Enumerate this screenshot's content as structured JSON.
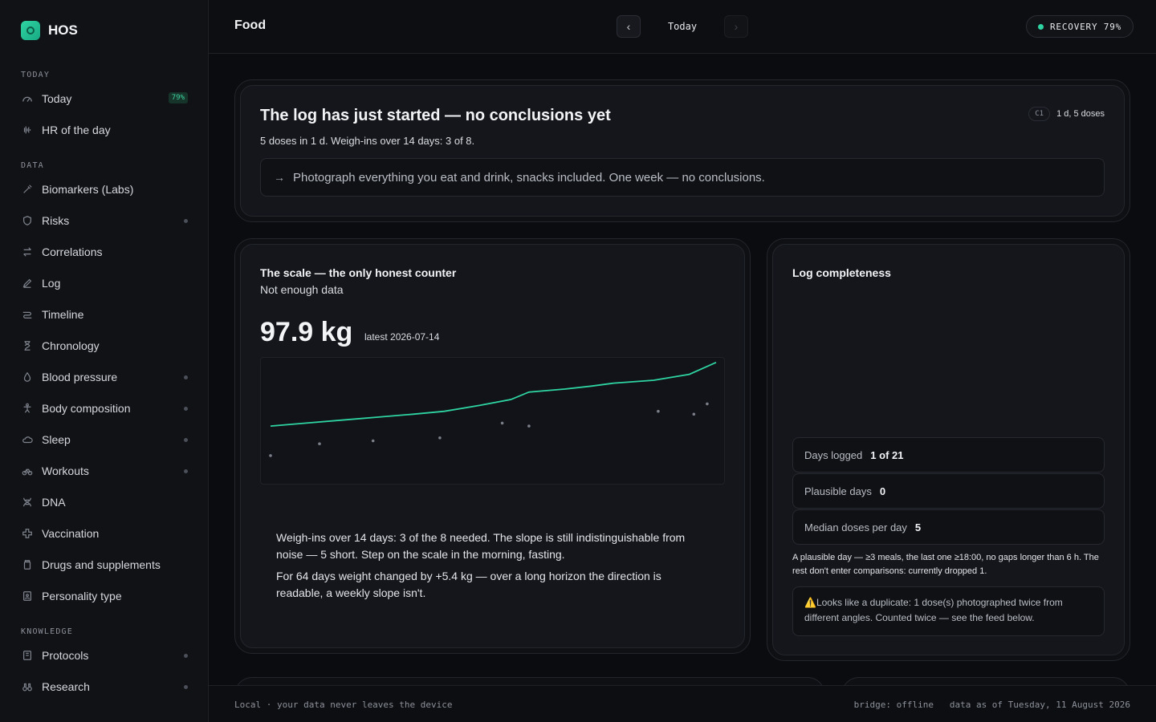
{
  "app": {
    "name": "HOS"
  },
  "sidebar": {
    "sections": {
      "today": "TODAY",
      "data": "DATA",
      "knowledge": "KNOWLEDGE"
    },
    "items": [
      {
        "label": "Today",
        "badge": "79%"
      },
      {
        "label": "HR of the day"
      },
      {
        "label": "Biomarkers (Labs)"
      },
      {
        "label": "Risks"
      },
      {
        "label": "Correlations"
      },
      {
        "label": "Log"
      },
      {
        "label": "Timeline"
      },
      {
        "label": "Chronology"
      },
      {
        "label": "Blood pressure"
      },
      {
        "label": "Body composition"
      },
      {
        "label": "Sleep"
      },
      {
        "label": "Workouts"
      },
      {
        "label": "DNA"
      },
      {
        "label": "Vaccination"
      },
      {
        "label": "Drugs and supplements"
      },
      {
        "label": "Personality type"
      },
      {
        "label": "Protocols"
      },
      {
        "label": "Research"
      }
    ]
  },
  "header": {
    "title": "Food",
    "date_label": "Today",
    "recovery": "RECOVERY 79%"
  },
  "hero": {
    "title": "The log has just started — no conclusions yet",
    "subtitle": "5 doses in 1 d. Weigh-ins over 14 days: 3 of 8.",
    "tag": "C1",
    "meta": "1 d, 5 doses",
    "hint": "Photograph everything you eat and drink, snacks included. One week — no conclusions."
  },
  "scale": {
    "title": "The scale — the only honest counter",
    "subtitle": "Not enough data",
    "value": "97.9 kg",
    "note": "latest 2026-07-14",
    "para1": "Weigh-ins over 14 days: 3 of the 8 needed. The slope is still indistinguishable from noise — 5 short. Step on the scale in the morning, fasting.",
    "para2": "For 64 days weight changed by +5.4 kg — over a long horizon the direction is readable, a weekly slope isn't."
  },
  "chart_data": {
    "type": "line",
    "title": "",
    "xlabel": "",
    "ylabel": "",
    "series": [
      {
        "values": [
          93.6,
          93.8,
          94.0,
          94.2,
          94.4,
          94.6,
          95.0,
          95.4,
          95.9,
          96.1,
          96.3,
          96.5,
          96.7,
          97.1,
          97.9
        ]
      },
      {
        "type": "scatter",
        "values": [
          91.6,
          92.4,
          92.6,
          92.8,
          93.8,
          93.6,
          94.6,
          94.4,
          95.1
        ]
      }
    ],
    "ylim": [
      91,
      98
    ]
  },
  "completeness": {
    "title": "Log completeness",
    "rows": [
      {
        "label": "Days logged",
        "value": "1 of 21"
      },
      {
        "label": "Plausible days",
        "value": "0"
      },
      {
        "label": "Median doses per day",
        "value": "5"
      }
    ],
    "note": "A plausible day — ≥3 meals, the last one ≥18:00, no gaps longer than 6 h. The rest don't enter comparisons: currently dropped 1.",
    "warning_icon": "⚠️",
    "warning": "Looks like a duplicate: 1 dose(s) photographed twice from different angles. Counted twice — see the feed below."
  },
  "footer": {
    "left": "Local · your data never leaves the device",
    "right": "bridge: offline   data as of Tuesday, 11 August 2026"
  },
  "colors": {
    "accent": "#2fd4a3",
    "background": "#0b0c0f"
  }
}
